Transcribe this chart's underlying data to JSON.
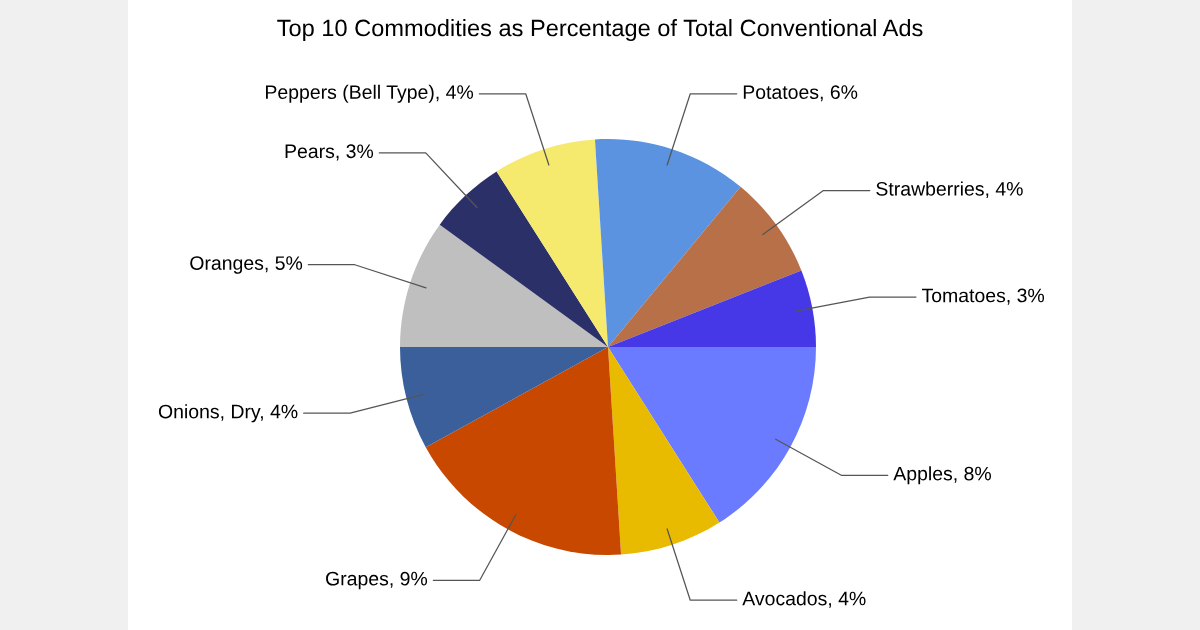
{
  "chart_data": {
    "type": "pie",
    "title": "Top 10 Commodities as Percentage of Total Conventional Ads",
    "categories": [
      "Apples",
      "Avocados",
      "Grapes",
      "Onions, Dry",
      "Oranges",
      "Pears",
      "Peppers (Bell Type)",
      "Potatoes",
      "Strawberries",
      "Tomatoes"
    ],
    "values": [
      8,
      4,
      9,
      4,
      5,
      3,
      4,
      6,
      4,
      3
    ],
    "value_labels": [
      "8%",
      "4%",
      "9%",
      "4%",
      "5%",
      "3%",
      "4%",
      "6%",
      "4%",
      "3%"
    ],
    "colors": [
      "#6b7bff",
      "#e8bb00",
      "#c84800",
      "#3a5f9a",
      "#bfbfbf",
      "#2c3068",
      "#f5e96e",
      "#5b93e0",
      "#b87048",
      "#4638e6"
    ]
  }
}
